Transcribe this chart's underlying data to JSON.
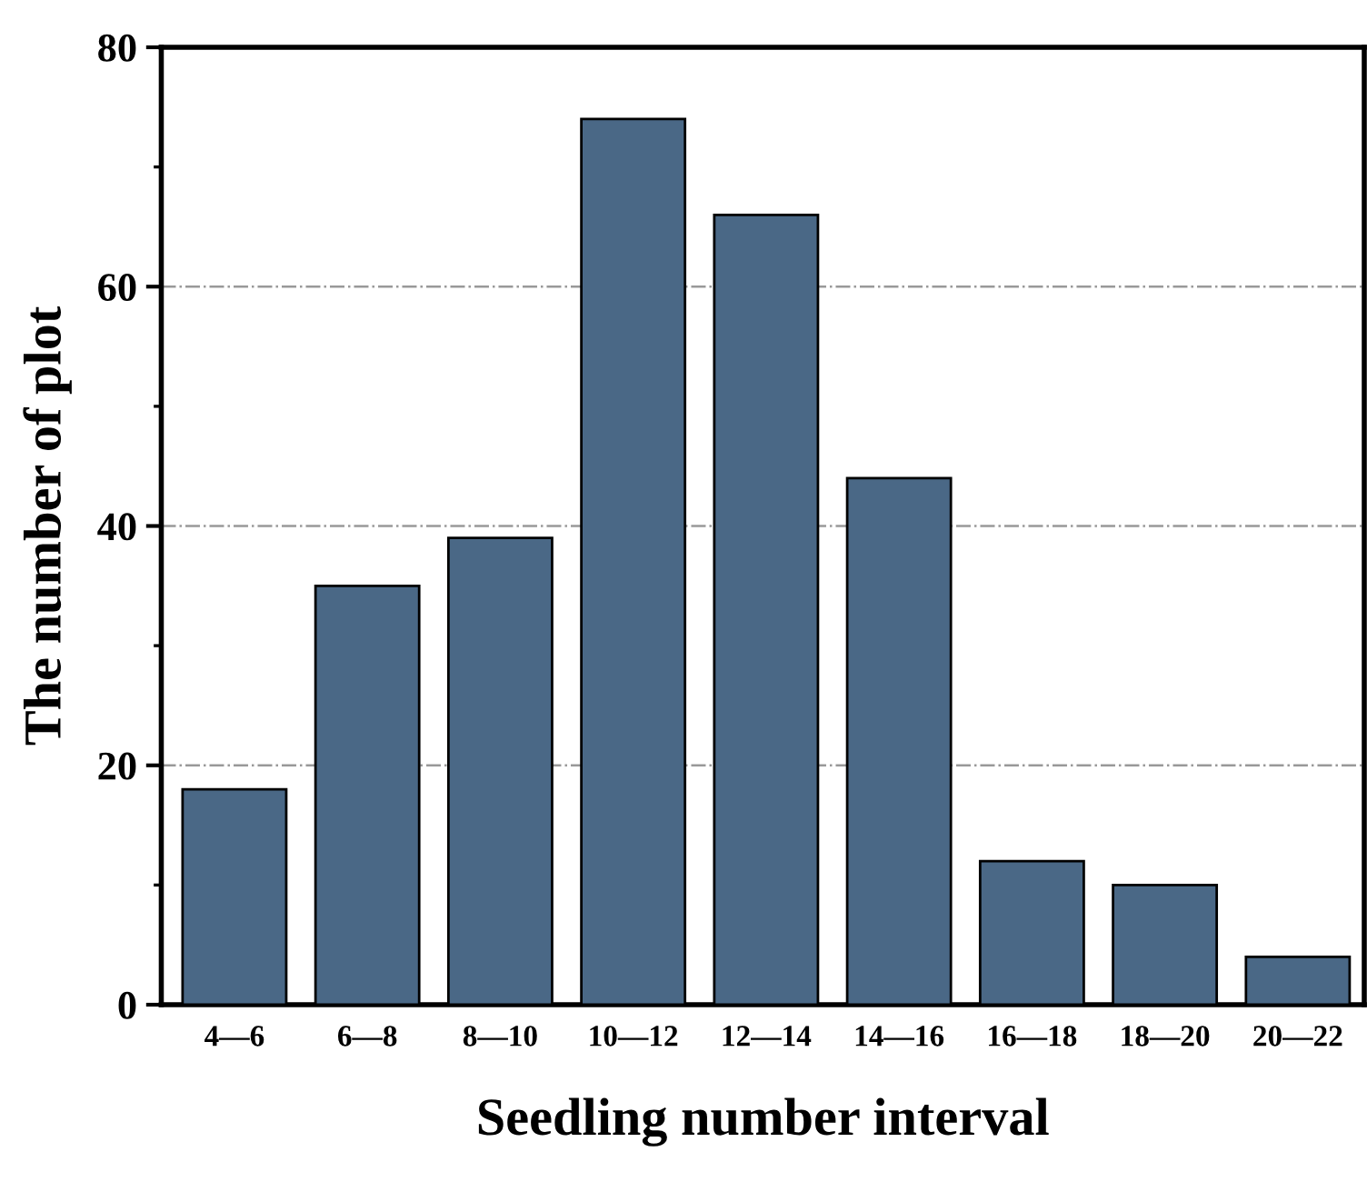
{
  "chart_data": {
    "type": "bar",
    "xlabel": "Seedling number interval",
    "ylabel": "The number of plot",
    "categories": [
      "4—6",
      "6—8",
      "8—10",
      "10—12",
      "12—14",
      "14—16",
      "16—18",
      "18—20",
      "20—22"
    ],
    "values": [
      18,
      35,
      39,
      74,
      66,
      44,
      12,
      10,
      4
    ],
    "color": "#4a6886",
    "ylim": [
      0,
      80
    ],
    "yticks": [
      0,
      20,
      40,
      60,
      80
    ],
    "grid": "y"
  }
}
